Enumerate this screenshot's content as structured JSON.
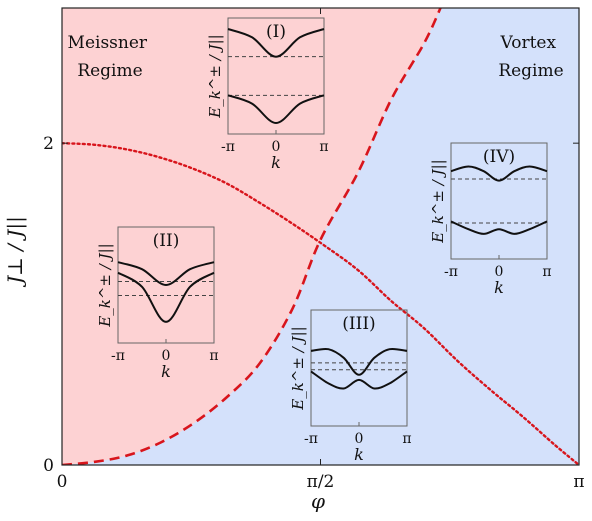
{
  "chart_data": {
    "type": "line",
    "title": "",
    "xlabel": "φ",
    "ylabel": "J⊥ / J||",
    "xlim": [
      0,
      3.14159
    ],
    "ylim": [
      0,
      2.84
    ],
    "x_ticks": [
      {
        "value": 0,
        "label": "0"
      },
      {
        "value": 1.5708,
        "label": "π/2"
      },
      {
        "value": 3.14159,
        "label": "π"
      }
    ],
    "y_ticks": [
      {
        "value": 0,
        "label": "0"
      },
      {
        "value": 2,
        "label": "2"
      }
    ],
    "grid": false,
    "regions": [
      {
        "name": "Meissner Regime",
        "lines": [
          "Meissner",
          "Regime"
        ],
        "color": "#fdd2d3",
        "side": "above critical curve"
      },
      {
        "name": "Vortex Regime",
        "lines": [
          "Vortex",
          "Regime"
        ],
        "color": "#d4e1fb",
        "side": "below critical curve"
      }
    ],
    "series": [
      {
        "style": "dashed",
        "color": "#d8151c",
        "x": [
          0,
          0.2,
          0.4,
          0.6,
          0.8,
          1.0,
          1.2,
          1.4,
          1.5708,
          1.8,
          2.0,
          2.2,
          2.3
        ],
        "y": [
          0,
          0.02,
          0.06,
          0.14,
          0.26,
          0.42,
          0.63,
          0.97,
          1.4,
          1.82,
          2.27,
          2.62,
          2.84
        ]
      },
      {
        "style": "dotted",
        "color": "#d8151c",
        "x": [
          0,
          0.2,
          0.4,
          0.6,
          0.8,
          1.0,
          1.2,
          1.4,
          1.6,
          1.8,
          2.0,
          2.2,
          2.4,
          2.6,
          2.8,
          3.0,
          3.14159
        ],
        "y": [
          2.0,
          1.99,
          1.96,
          1.91,
          1.84,
          1.75,
          1.63,
          1.5,
          1.36,
          1.21,
          1.02,
          0.85,
          0.65,
          0.47,
          0.3,
          0.12,
          0.0
        ]
      }
    ],
    "insets": [
      {
        "label": "(I)",
        "ylabel": "E_k^± / J||",
        "xlabel": "k",
        "x_ticks": [
          "-π",
          "0",
          "π"
        ],
        "upper": {
          "x": [
            -3.14159,
            -1.5708,
            0,
            1.5708,
            3.14159
          ],
          "y": [
            2.2,
            1.9,
            1.2,
            1.9,
            2.2
          ]
        },
        "lower": {
          "x": [
            -3.14159,
            -1.5708,
            0,
            1.5708,
            3.14159
          ],
          "y": [
            -0.2,
            -0.5,
            -1.2,
            -0.5,
            -0.2
          ]
        },
        "dashed_levels": [
          1.2,
          -0.2
        ],
        "ylim": [
          -1.6,
          2.6
        ]
      },
      {
        "label": "(II)",
        "ylabel": "E_k^± / J||",
        "xlabel": "k",
        "x_ticks": [
          "-π",
          "0",
          "π"
        ],
        "upper": {
          "x": [
            -3.14159,
            -1.5708,
            0,
            1.5708,
            3.14159
          ],
          "y": [
            1.1,
            0.9,
            0.45,
            0.9,
            1.1
          ]
        },
        "lower": {
          "x": [
            -3.14159,
            -1.5708,
            0,
            1.5708,
            3.14159
          ],
          "y": [
            0.8,
            0.4,
            -0.6,
            0.4,
            0.8
          ]
        },
        "dashed_levels": [
          0.55,
          0.15
        ],
        "ylim": [
          -1.2,
          2.1
        ]
      },
      {
        "label": "(III)",
        "ylabel": "E_k^± / J||",
        "xlabel": "k",
        "x_ticks": [
          "-π",
          "0",
          "π"
        ],
        "upper": {
          "x": [
            -3.14159,
            -2.0,
            -1.0,
            0,
            1.0,
            2.0,
            3.14159
          ],
          "y": [
            0.9,
            0.95,
            0.7,
            0.2,
            0.7,
            0.95,
            0.9
          ]
        },
        "lower": {
          "x": [
            -3.14159,
            -2.0,
            -1.0,
            0,
            1.0,
            2.0,
            3.14159
          ],
          "y": [
            0.3,
            -0.05,
            -0.2,
            0.05,
            -0.2,
            -0.05,
            0.3
          ]
        },
        "dashed_levels": [
          0.55,
          0.35
        ],
        "ylim": [
          -1.3,
          2.1
        ]
      },
      {
        "label": "(IV)",
        "ylabel": "E_k^± / J||",
        "xlabel": "k",
        "x_ticks": [
          "-π",
          "0",
          "π"
        ],
        "upper": {
          "x": [
            -3.14159,
            -2.0,
            -1.0,
            0,
            1.0,
            2.0,
            3.14159
          ],
          "y": [
            1.3,
            1.45,
            1.3,
            1.0,
            1.3,
            1.45,
            1.3
          ]
        },
        "lower": {
          "x": [
            -3.14159,
            -2.0,
            -1.0,
            0,
            1.0,
            2.0,
            3.14159
          ],
          "y": [
            -0.3,
            -0.55,
            -0.7,
            -0.55,
            -0.7,
            -0.55,
            -0.3
          ]
        },
        "dashed_levels": [
          1.05,
          -0.35
        ],
        "ylim": [
          -1.5,
          2.2
        ]
      }
    ]
  }
}
